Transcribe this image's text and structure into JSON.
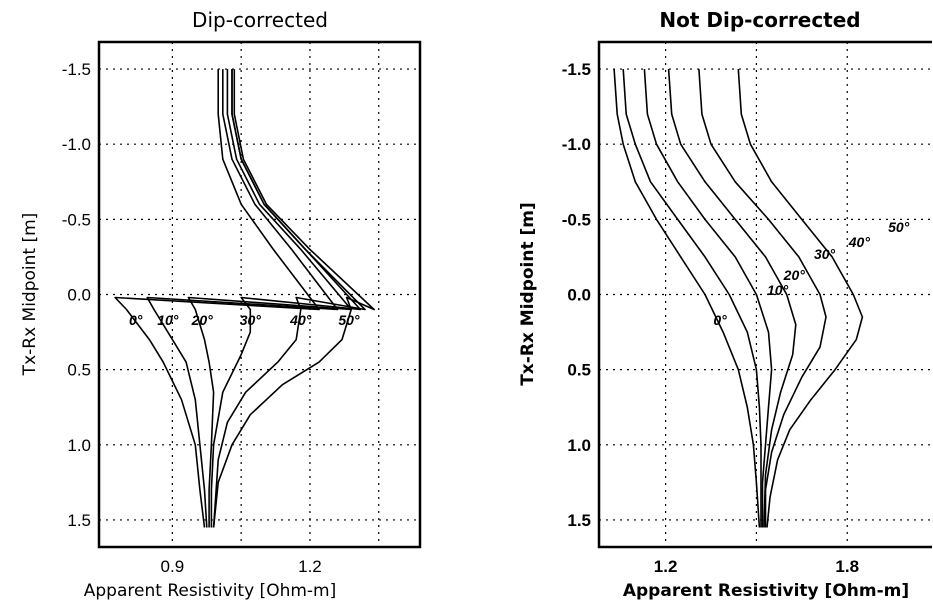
{
  "chart_data": [
    {
      "type": "line",
      "title": "Dip-corrected",
      "xlabel": "Apparent Resistivity [Ohm-m]",
      "ylabel": "Tx-Rx Midpoint [m]",
      "xlim": [
        0.74,
        1.44
      ],
      "ylim": [
        -1.68,
        1.68
      ],
      "y_inverted": true,
      "xticks": [
        0.9,
        1.2
      ],
      "xtick_labels": [
        "0.9",
        "1.2"
      ],
      "xgrid": [
        0.9,
        1.05,
        1.2,
        1.35
      ],
      "yticks": [
        -1.5,
        -1.0,
        -0.5,
        0.0,
        0.5,
        1.0,
        1.5
      ],
      "ytick_labels": [
        "-1.5",
        "-1.0",
        "-0.5",
        "0.0",
        "0.5",
        "1.0",
        "1.5"
      ],
      "grid": true,
      "series": [
        {
          "name": "0°",
          "points": [
            [
              1.0,
              -1.5
            ],
            [
              1.0,
              -1.2
            ],
            [
              1.01,
              -0.9
            ],
            [
              1.05,
              -0.6
            ],
            [
              1.12,
              -0.3
            ],
            [
              1.22,
              0.1
            ],
            [
              0.775,
              0.02
            ],
            [
              0.8,
              0.1
            ],
            [
              0.85,
              0.3
            ],
            [
              0.88,
              0.45
            ],
            [
              0.92,
              0.7
            ],
            [
              0.95,
              1.0
            ],
            [
              0.96,
              1.3
            ],
            [
              0.97,
              1.55
            ]
          ]
        },
        {
          "name": "10°",
          "points": [
            [
              1.01,
              -1.5
            ],
            [
              1.01,
              -1.2
            ],
            [
              1.03,
              -0.9
            ],
            [
              1.08,
              -0.6
            ],
            [
              1.16,
              -0.3
            ],
            [
              1.26,
              0.1
            ],
            [
              0.845,
              0.02
            ],
            [
              0.86,
              0.1
            ],
            [
              0.9,
              0.3
            ],
            [
              0.93,
              0.45
            ],
            [
              0.95,
              0.7
            ],
            [
              0.96,
              1.0
            ],
            [
              0.97,
              1.3
            ],
            [
              0.975,
              1.55
            ]
          ]
        },
        {
          "name": "20°",
          "points": [
            [
              1.02,
              -1.5
            ],
            [
              1.02,
              -1.2
            ],
            [
              1.04,
              -0.9
            ],
            [
              1.09,
              -0.6
            ],
            [
              1.18,
              -0.3
            ],
            [
              1.29,
              0.1
            ],
            [
              0.935,
              0.02
            ],
            [
              0.95,
              0.1
            ],
            [
              0.97,
              0.3
            ],
            [
              0.98,
              0.45
            ],
            [
              0.99,
              0.65
            ],
            [
              0.985,
              1.0
            ],
            [
              0.98,
              1.3
            ],
            [
              0.98,
              1.55
            ]
          ]
        },
        {
          "name": "30°",
          "points": [
            [
              1.03,
              -1.5
            ],
            [
              1.03,
              -1.2
            ],
            [
              1.05,
              -0.9
            ],
            [
              1.1,
              -0.6
            ],
            [
              1.19,
              -0.3
            ],
            [
              1.31,
              0.1
            ],
            [
              1.05,
              0.02
            ],
            [
              1.07,
              0.1
            ],
            [
              1.07,
              0.25
            ],
            [
              1.05,
              0.4
            ],
            [
              1.01,
              0.65
            ],
            [
              0.99,
              1.0
            ],
            [
              0.985,
              1.3
            ],
            [
              0.985,
              1.55
            ]
          ]
        },
        {
          "name": "40°",
          "points": [
            [
              1.03,
              -1.5
            ],
            [
              1.03,
              -1.2
            ],
            [
              1.05,
              -0.9
            ],
            [
              1.1,
              -0.6
            ],
            [
              1.19,
              -0.3
            ],
            [
              1.32,
              0.1
            ],
            [
              1.17,
              0.02
            ],
            [
              1.18,
              0.1
            ],
            [
              1.17,
              0.3
            ],
            [
              1.13,
              0.45
            ],
            [
              1.06,
              0.65
            ],
            [
              1.02,
              0.85
            ],
            [
              1.0,
              1.1
            ],
            [
              0.99,
              1.55
            ]
          ]
        },
        {
          "name": "50°",
          "points": [
            [
              1.035,
              -1.5
            ],
            [
              1.035,
              -1.2
            ],
            [
              1.055,
              -0.9
            ],
            [
              1.105,
              -0.6
            ],
            [
              1.2,
              -0.3
            ],
            [
              1.34,
              0.1
            ],
            [
              1.28,
              0.02
            ],
            [
              1.29,
              0.1
            ],
            [
              1.27,
              0.3
            ],
            [
              1.22,
              0.45
            ],
            [
              1.14,
              0.6
            ],
            [
              1.07,
              0.8
            ],
            [
              1.03,
              1.0
            ],
            [
              1.0,
              1.25
            ],
            [
              0.99,
              1.55
            ]
          ]
        }
      ],
      "annotations": [
        {
          "text": "0°",
          "x": 0.82,
          "y": 0.17
        },
        {
          "text": "10°",
          "x": 0.89,
          "y": 0.17
        },
        {
          "text": "20°",
          "x": 0.965,
          "y": 0.17
        },
        {
          "text": "30°",
          "x": 1.07,
          "y": 0.17
        },
        {
          "text": "40°",
          "x": 1.18,
          "y": 0.17
        },
        {
          "text": "50°",
          "x": 1.285,
          "y": 0.17
        }
      ]
    },
    {
      "type": "line",
      "title": "Not Dip-corrected",
      "xlabel": "Apparent Resistivity [Ohm-m]",
      "ylabel": "Tx-Rx Midpoint [m]",
      "xlim": [
        0.98,
        2.08
      ],
      "ylim": [
        -1.68,
        1.68
      ],
      "y_inverted": true,
      "xticks": [
        1.2,
        1.8
      ],
      "xtick_labels": [
        "1.2",
        "1.8"
      ],
      "xgrid": [
        1.2,
        1.5,
        1.8
      ],
      "yticks": [
        -1.5,
        -1.0,
        -0.5,
        0.0,
        0.5,
        1.0,
        1.5
      ],
      "ytick_labels": [
        "-1.5",
        "-1.0",
        "-0.5",
        "0.0",
        "0.5",
        "1.0",
        "1.5"
      ],
      "grid": true,
      "series": [
        {
          "name": "0°",
          "points": [
            [
              1.03,
              -1.5
            ],
            [
              1.04,
              -1.2
            ],
            [
              1.06,
              -1.0
            ],
            [
              1.1,
              -0.75
            ],
            [
              1.17,
              -0.5
            ],
            [
              1.25,
              -0.25
            ],
            [
              1.33,
              0.0
            ],
            [
              1.39,
              0.25
            ],
            [
              1.44,
              0.5
            ],
            [
              1.47,
              0.75
            ],
            [
              1.49,
              1.0
            ],
            [
              1.5,
              1.25
            ],
            [
              1.51,
              1.55
            ]
          ]
        },
        {
          "name": "10°",
          "points": [
            [
              1.06,
              -1.5
            ],
            [
              1.07,
              -1.2
            ],
            [
              1.1,
              -1.0
            ],
            [
              1.15,
              -0.75
            ],
            [
              1.24,
              -0.5
            ],
            [
              1.33,
              -0.25
            ],
            [
              1.41,
              0.0
            ],
            [
              1.47,
              0.25
            ],
            [
              1.5,
              0.5
            ],
            [
              1.51,
              0.75
            ],
            [
              1.515,
              1.0
            ],
            [
              1.515,
              1.25
            ],
            [
              1.515,
              1.55
            ]
          ]
        },
        {
          "name": "20°",
          "points": [
            [
              1.13,
              -1.5
            ],
            [
              1.14,
              -1.2
            ],
            [
              1.17,
              -1.0
            ],
            [
              1.24,
              -0.75
            ],
            [
              1.33,
              -0.5
            ],
            [
              1.43,
              -0.25
            ],
            [
              1.5,
              0.0
            ],
            [
              1.54,
              0.25
            ],
            [
              1.55,
              0.5
            ],
            [
              1.54,
              0.75
            ],
            [
              1.53,
              1.0
            ],
            [
              1.52,
              1.25
            ],
            [
              1.52,
              1.55
            ]
          ]
        },
        {
          "name": "30°",
          "points": [
            [
              1.21,
              -1.5
            ],
            [
              1.22,
              -1.2
            ],
            [
              1.25,
              -1.0
            ],
            [
              1.33,
              -0.75
            ],
            [
              1.43,
              -0.5
            ],
            [
              1.53,
              -0.25
            ],
            [
              1.6,
              0.0
            ],
            [
              1.63,
              0.2
            ],
            [
              1.62,
              0.4
            ],
            [
              1.58,
              0.65
            ],
            [
              1.55,
              0.9
            ],
            [
              1.53,
              1.2
            ],
            [
              1.525,
              1.55
            ]
          ]
        },
        {
          "name": "40°",
          "points": [
            [
              1.31,
              -1.5
            ],
            [
              1.32,
              -1.2
            ],
            [
              1.35,
              -1.0
            ],
            [
              1.43,
              -0.75
            ],
            [
              1.54,
              -0.5
            ],
            [
              1.64,
              -0.25
            ],
            [
              1.71,
              0.0
            ],
            [
              1.73,
              0.15
            ],
            [
              1.71,
              0.35
            ],
            [
              1.65,
              0.55
            ],
            [
              1.59,
              0.8
            ],
            [
              1.55,
              1.05
            ],
            [
              1.53,
              1.3
            ],
            [
              1.53,
              1.55
            ]
          ]
        },
        {
          "name": "50°",
          "points": [
            [
              1.44,
              -1.5
            ],
            [
              1.45,
              -1.2
            ],
            [
              1.48,
              -1.0
            ],
            [
              1.55,
              -0.75
            ],
            [
              1.65,
              -0.5
            ],
            [
              1.75,
              -0.25
            ],
            [
              1.82,
              0.0
            ],
            [
              1.85,
              0.15
            ],
            [
              1.83,
              0.3
            ],
            [
              1.76,
              0.5
            ],
            [
              1.68,
              0.7
            ],
            [
              1.61,
              0.9
            ],
            [
              1.57,
              1.1
            ],
            [
              1.545,
              1.35
            ],
            [
              1.535,
              1.55
            ]
          ]
        }
      ],
      "annotations": [
        {
          "text": "0°",
          "x": 1.38,
          "y": 0.17
        },
        {
          "text": "10°",
          "x": 1.57,
          "y": -0.03
        },
        {
          "text": "20°",
          "x": 1.625,
          "y": -0.13
        },
        {
          "text": "30°",
          "x": 1.725,
          "y": -0.27
        },
        {
          "text": "40°",
          "x": 1.84,
          "y": -0.35
        },
        {
          "text": "50°",
          "x": 1.97,
          "y": -0.45
        }
      ]
    }
  ]
}
